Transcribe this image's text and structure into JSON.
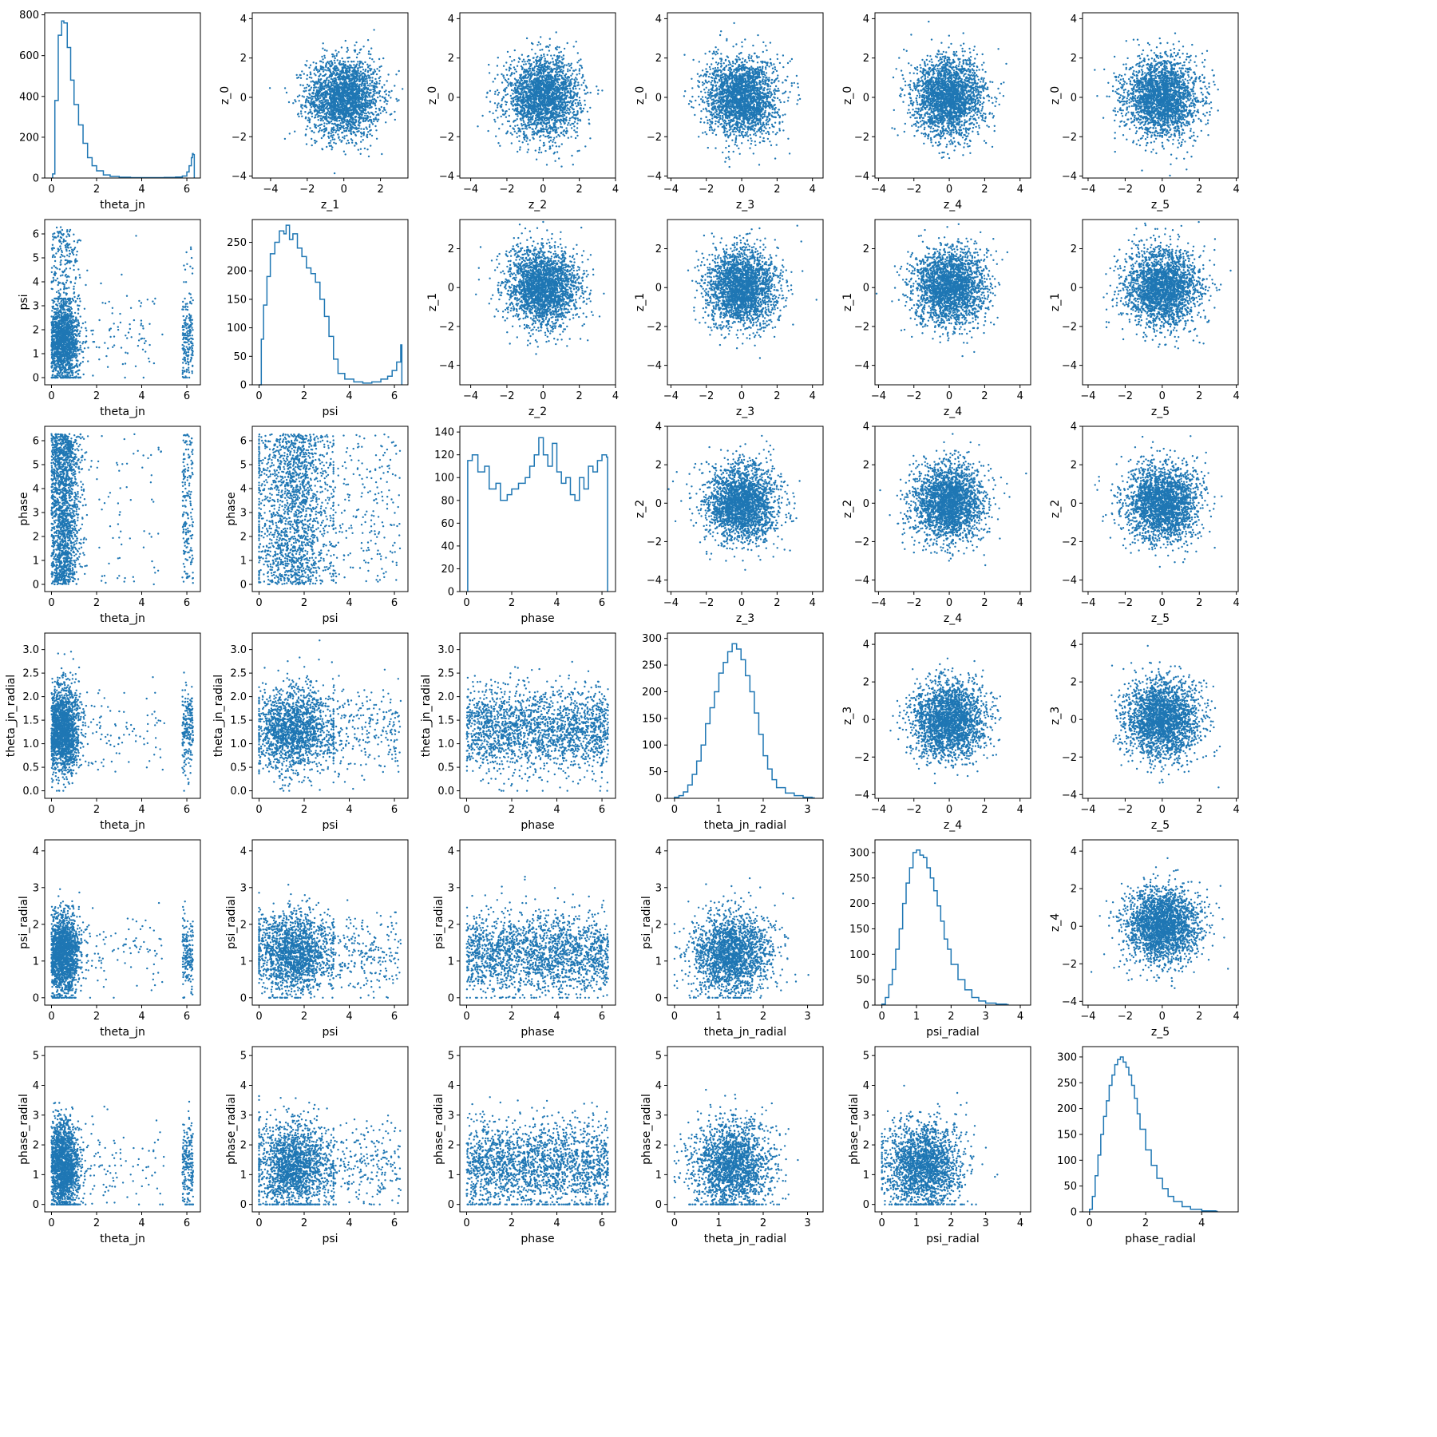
{
  "chart_data": {
    "type": "scatter",
    "layout": "corner-plot",
    "rows": 6,
    "cols": 6,
    "colors": {
      "series": "#1f77b4",
      "axes": "#000000",
      "background": "#ffffff"
    },
    "variables": {
      "z_0": {
        "ylabel": "z_0",
        "lim": [
          -4.1,
          4.3
        ],
        "ticks": [
          -4,
          -2,
          0,
          2,
          4
        ],
        "tick_labels": [
          "−4",
          "−2",
          "0",
          "2",
          "4"
        ]
      },
      "z_1_row": {
        "ylabel": "z_1",
        "lim": [
          -5.0,
          3.5
        ],
        "ticks": [
          -4,
          -2,
          0,
          2
        ],
        "tick_labels": [
          "−4",
          "−2",
          "0",
          "2"
        ]
      },
      "z_2_row": {
        "ylabel": "z_2",
        "lim": [
          -4.6,
          4.0
        ],
        "ticks": [
          -4,
          -2,
          0,
          2,
          4
        ],
        "tick_labels": [
          "−4",
          "−2",
          "0",
          "2",
          "4"
        ]
      },
      "z_3_row": {
        "ylabel": "z_3",
        "lim": [
          -4.2,
          4.6
        ],
        "ticks": [
          -4,
          -2,
          0,
          2,
          4
        ],
        "tick_labels": [
          "−4",
          "−2",
          "0",
          "2",
          "4"
        ]
      },
      "z_4_row": {
        "ylabel": "z_4",
        "lim": [
          -4.2,
          4.6
        ],
        "ticks": [
          -4,
          -2,
          0,
          2,
          4
        ],
        "tick_labels": [
          "−4",
          "−2",
          "0",
          "2",
          "4"
        ]
      },
      "z_1": {
        "xlabel": "z_1",
        "lim": [
          -5.0,
          3.5
        ],
        "ticks": [
          -4,
          -2,
          0,
          2
        ],
        "tick_labels": [
          "−4",
          "−2",
          "0",
          "2"
        ]
      },
      "z_2": {
        "xlabel": "z_2",
        "lim": [
          -4.6,
          4.0
        ],
        "ticks": [
          -4,
          -2,
          0,
          2,
          4
        ],
        "tick_labels": [
          "−4",
          "−2",
          "0",
          "2",
          "4"
        ]
      },
      "z_3": {
        "xlabel": "z_3",
        "lim": [
          -4.2,
          4.6
        ],
        "ticks": [
          -4,
          -2,
          0,
          2,
          4
        ],
        "tick_labels": [
          "−4",
          "−2",
          "0",
          "2",
          "4"
        ]
      },
      "z_4": {
        "xlabel": "z_4",
        "lim": [
          -4.2,
          4.6
        ],
        "ticks": [
          -4,
          -2,
          0,
          2,
          4
        ],
        "tick_labels": [
          "−4",
          "−2",
          "0",
          "2",
          "4"
        ]
      },
      "z_5": {
        "xlabel": "z_5",
        "lim": [
          -4.3,
          4.1
        ],
        "ticks": [
          -4,
          -2,
          0,
          2,
          4
        ],
        "tick_labels": [
          "−4",
          "−2",
          "0",
          "2",
          "4"
        ]
      },
      "theta_jn": {
        "label": "theta_jn",
        "lim": [
          -0.3,
          6.6
        ],
        "ticks": [
          0,
          2,
          4,
          6
        ],
        "tick_labels": [
          "0",
          "2",
          "4",
          "6"
        ]
      },
      "psi": {
        "label": "psi",
        "lim": [
          -0.3,
          6.6
        ],
        "ticks": [
          0,
          1,
          2,
          3,
          4,
          5,
          6
        ],
        "tick_labels": [
          "0",
          "1",
          "2",
          "3",
          "4",
          "5",
          "6"
        ],
        "xticks": [
          0,
          2,
          4,
          6
        ],
        "xtick_labels": [
          "0",
          "2",
          "4",
          "6"
        ]
      },
      "phase": {
        "label": "phase",
        "lim": [
          -0.3,
          6.6
        ],
        "ticks": [
          0,
          1,
          2,
          3,
          4,
          5,
          6
        ],
        "tick_labels": [
          "0",
          "1",
          "2",
          "3",
          "4",
          "5",
          "6"
        ],
        "xticks": [
          0,
          2,
          4,
          6
        ],
        "xtick_labels": [
          "0",
          "2",
          "4",
          "6"
        ]
      },
      "theta_jn_radial": {
        "label": "theta_jn_radial",
        "lim": [
          -0.16,
          3.35
        ],
        "ticks": [
          0.0,
          0.5,
          1.0,
          1.5,
          2.0,
          2.5,
          3.0
        ],
        "tick_labels": [
          "0.0",
          "0.5",
          "1.0",
          "1.5",
          "2.0",
          "2.5",
          "3.0"
        ],
        "xticks": [
          0,
          1,
          2,
          3
        ],
        "xtick_labels": [
          "0",
          "1",
          "2",
          "3"
        ]
      },
      "psi_radial": {
        "label": "psi_radial",
        "lim": [
          -0.2,
          4.3
        ],
        "ticks": [
          0,
          1,
          2,
          3,
          4
        ],
        "tick_labels": [
          "0",
          "1",
          "2",
          "3",
          "4"
        ]
      },
      "phase_radial": {
        "label": "phase_radial",
        "lim": [
          -0.25,
          5.3
        ],
        "ticks": [
          0,
          1,
          2,
          3,
          4,
          5
        ],
        "tick_labels": [
          "0",
          "1",
          "2",
          "3",
          "4",
          "5"
        ],
        "xticks": [
          0,
          2,
          4
        ],
        "xtick_labels": [
          "0",
          "2",
          "4"
        ]
      }
    },
    "histograms": [
      {
        "row": 0,
        "col": 0,
        "xlabel": "theta_jn",
        "xlim": [
          -0.3,
          6.6
        ],
        "ylim": [
          0,
          810
        ],
        "yticks": [
          0,
          200,
          400,
          600,
          800
        ],
        "ytick_labels": [
          "0",
          "200",
          "400",
          "600",
          "800"
        ],
        "xticks": [
          0,
          2,
          4,
          6
        ],
        "xtick_labels": [
          "0",
          "2",
          "4",
          "6"
        ],
        "x": [
          0.05,
          0.15,
          0.3,
          0.45,
          0.55,
          0.7,
          0.85,
          1.0,
          1.2,
          1.4,
          1.6,
          1.8,
          2.0,
          2.3,
          2.6,
          3.0,
          3.5,
          4.0,
          4.5,
          5.0,
          5.5,
          5.8,
          6.0,
          6.1,
          6.2,
          6.25,
          6.28
        ],
        "y": [
          20,
          380,
          700,
          770,
          760,
          640,
          480,
          360,
          260,
          170,
          100,
          60,
          35,
          15,
          8,
          4,
          2,
          2,
          2,
          3,
          5,
          10,
          30,
          60,
          100,
          120,
          115
        ]
      },
      {
        "row": 1,
        "col": 1,
        "xlabel": "psi",
        "xlim": [
          -0.3,
          6.6
        ],
        "ylim": [
          0,
          290
        ],
        "yticks": [
          0,
          50,
          100,
          150,
          200,
          250
        ],
        "ytick_labels": [
          "0",
          "50",
          "100",
          "150",
          "200",
          "250"
        ],
        "xticks": [
          0,
          2,
          4,
          6
        ],
        "xtick_labels": [
          "0",
          "2",
          "4",
          "6"
        ],
        "x": [
          0.0,
          0.1,
          0.2,
          0.35,
          0.5,
          0.7,
          0.9,
          1.1,
          1.2,
          1.35,
          1.5,
          1.7,
          1.9,
          2.1,
          2.3,
          2.5,
          2.7,
          2.9,
          3.1,
          3.3,
          3.5,
          3.8,
          4.2,
          4.6,
          5.0,
          5.4,
          5.7,
          5.9,
          6.1,
          6.28
        ],
        "y": [
          0,
          80,
          140,
          190,
          230,
          250,
          270,
          265,
          280,
          255,
          265,
          240,
          225,
          205,
          195,
          180,
          150,
          120,
          85,
          45,
          20,
          10,
          5,
          3,
          5,
          10,
          15,
          25,
          40,
          70
        ]
      },
      {
        "row": 2,
        "col": 2,
        "xlabel": "phase",
        "xlim": [
          -0.3,
          6.6
        ],
        "ylim": [
          0,
          145
        ],
        "yticks": [
          0,
          20,
          40,
          60,
          80,
          100,
          120,
          140
        ],
        "ytick_labels": [
          "0",
          "20",
          "40",
          "60",
          "80",
          "100",
          "120",
          "140"
        ],
        "xticks": [
          0,
          2,
          4,
          6
        ],
        "xtick_labels": [
          "0",
          "2",
          "4",
          "6"
        ],
        "x": [
          0.05,
          0.25,
          0.5,
          0.8,
          1.0,
          1.3,
          1.5,
          1.8,
          2.0,
          2.3,
          2.6,
          2.8,
          3.0,
          3.2,
          3.4,
          3.6,
          3.8,
          4.0,
          4.2,
          4.4,
          4.6,
          4.8,
          5.0,
          5.2,
          5.4,
          5.6,
          5.8,
          6.0,
          6.2
        ],
        "y": [
          115,
          120,
          105,
          110,
          90,
          95,
          80,
          85,
          90,
          95,
          100,
          110,
          120,
          135,
          120,
          110,
          130,
          105,
          95,
          100,
          85,
          80,
          100,
          90,
          110,
          105,
          115,
          120,
          118
        ]
      },
      {
        "row": 3,
        "col": 3,
        "xlabel": "theta_jn_radial",
        "xlim": [
          -0.16,
          3.35
        ],
        "ylim": [
          0,
          310
        ],
        "yticks": [
          0,
          50,
          100,
          150,
          200,
          250,
          300
        ],
        "ytick_labels": [
          "0",
          "50",
          "100",
          "150",
          "200",
          "250",
          "300"
        ],
        "xticks": [
          0,
          1,
          2,
          3
        ],
        "xtick_labels": [
          "0",
          "1",
          "2",
          "3"
        ],
        "x": [
          0.0,
          0.1,
          0.2,
          0.3,
          0.4,
          0.5,
          0.6,
          0.7,
          0.8,
          0.9,
          1.0,
          1.1,
          1.2,
          1.3,
          1.4,
          1.5,
          1.6,
          1.7,
          1.8,
          1.9,
          2.0,
          2.1,
          2.2,
          2.3,
          2.5,
          2.7,
          2.9,
          3.1
        ],
        "y": [
          2,
          5,
          12,
          25,
          45,
          70,
          100,
          140,
          170,
          200,
          235,
          255,
          275,
          290,
          280,
          260,
          230,
          200,
          160,
          120,
          80,
          55,
          35,
          20,
          10,
          5,
          2,
          1
        ]
      },
      {
        "row": 4,
        "col": 4,
        "xlabel": "psi_radial",
        "xlim": [
          -0.2,
          4.3
        ],
        "ylim": [
          0,
          325
        ],
        "yticks": [
          0,
          50,
          100,
          150,
          200,
          250,
          300
        ],
        "ytick_labels": [
          "0",
          "50",
          "100",
          "150",
          "200",
          "250",
          "300"
        ],
        "xticks": [
          0,
          1,
          2,
          3,
          4
        ],
        "xtick_labels": [
          "0",
          "1",
          "2",
          "3",
          "4"
        ],
        "x": [
          0.0,
          0.1,
          0.2,
          0.3,
          0.4,
          0.5,
          0.6,
          0.7,
          0.8,
          0.9,
          1.0,
          1.1,
          1.2,
          1.3,
          1.4,
          1.5,
          1.6,
          1.7,
          1.8,
          1.9,
          2.0,
          2.2,
          2.4,
          2.6,
          2.8,
          3.0,
          3.3,
          3.6
        ],
        "y": [
          2,
          15,
          40,
          70,
          110,
          150,
          200,
          240,
          270,
          300,
          305,
          295,
          290,
          270,
          250,
          225,
          195,
          165,
          130,
          110,
          80,
          50,
          30,
          15,
          8,
          4,
          2,
          1
        ]
      },
      {
        "row": 5,
        "col": 5,
        "xlabel": "phase_radial",
        "xlim": [
          -0.25,
          5.3
        ],
        "ylim": [
          0,
          320
        ],
        "yticks": [
          0,
          50,
          100,
          150,
          200,
          250,
          300
        ],
        "ytick_labels": [
          "0",
          "50",
          "100",
          "150",
          "200",
          "250",
          "300"
        ],
        "xticks": [
          0,
          2,
          4
        ],
        "xtick_labels": [
          "0",
          "2",
          "4"
        ],
        "x": [
          0.0,
          0.1,
          0.2,
          0.3,
          0.4,
          0.5,
          0.6,
          0.7,
          0.8,
          0.9,
          1.0,
          1.1,
          1.2,
          1.3,
          1.4,
          1.5,
          1.6,
          1.7,
          1.8,
          2.0,
          2.2,
          2.4,
          2.6,
          2.8,
          3.0,
          3.3,
          3.6,
          4.0,
          4.5
        ],
        "y": [
          5,
          30,
          70,
          110,
          150,
          185,
          215,
          245,
          265,
          285,
          295,
          300,
          290,
          280,
          265,
          245,
          220,
          190,
          160,
          120,
          90,
          65,
          45,
          30,
          20,
          10,
          5,
          2,
          1
        ]
      }
    ],
    "scatter_panels": [
      {
        "row": 0,
        "col": 1,
        "x": "z_1",
        "y": "z_0",
        "shape": "gaussian",
        "n": 2400
      },
      {
        "row": 0,
        "col": 2,
        "x": "z_2",
        "y": "z_0",
        "shape": "gaussian",
        "n": 2400
      },
      {
        "row": 0,
        "col": 3,
        "x": "z_3",
        "y": "z_0",
        "shape": "gaussian",
        "n": 2400
      },
      {
        "row": 0,
        "col": 4,
        "x": "z_4",
        "y": "z_0",
        "shape": "gaussian",
        "n": 2400
      },
      {
        "row": 0,
        "col": 5,
        "x": "z_5",
        "y": "z_0",
        "shape": "gaussian",
        "n": 2400
      },
      {
        "row": 1,
        "col": 2,
        "x": "z_2",
        "y": "z_1_row",
        "shape": "gaussian",
        "n": 2400
      },
      {
        "row": 1,
        "col": 3,
        "x": "z_3",
        "y": "z_1_row",
        "shape": "gaussian",
        "n": 2400
      },
      {
        "row": 1,
        "col": 4,
        "x": "z_4",
        "y": "z_1_row",
        "shape": "gaussian",
        "n": 2400
      },
      {
        "row": 1,
        "col": 5,
        "x": "z_5",
        "y": "z_1_row",
        "shape": "gaussian",
        "n": 2400
      },
      {
        "row": 2,
        "col": 3,
        "x": "z_3",
        "y": "z_2_row",
        "shape": "gaussian",
        "n": 2400
      },
      {
        "row": 2,
        "col": 4,
        "x": "z_4",
        "y": "z_2_row",
        "shape": "gaussian",
        "n": 2400
      },
      {
        "row": 2,
        "col": 5,
        "x": "z_5",
        "y": "z_2_row",
        "shape": "gaussian",
        "n": 2400
      },
      {
        "row": 3,
        "col": 4,
        "x": "z_4",
        "y": "z_3_row",
        "shape": "gaussian",
        "n": 2400
      },
      {
        "row": 3,
        "col": 5,
        "x": "z_5",
        "y": "z_3_row",
        "shape": "gaussian",
        "n": 2400
      },
      {
        "row": 4,
        "col": 5,
        "x": "z_5",
        "y": "z_4_row",
        "shape": "gaussian",
        "n": 2400
      },
      {
        "row": 1,
        "col": 0,
        "x": "theta_jn",
        "y": "psi",
        "n": 2000
      },
      {
        "row": 2,
        "col": 0,
        "x": "theta_jn",
        "y": "phase",
        "n": 2000
      },
      {
        "row": 2,
        "col": 1,
        "x": "psi",
        "y": "phase",
        "n": 2000
      },
      {
        "row": 3,
        "col": 0,
        "x": "theta_jn",
        "y": "theta_jn_radial",
        "n": 2000
      },
      {
        "row": 3,
        "col": 1,
        "x": "psi",
        "y": "theta_jn_radial",
        "n": 2000
      },
      {
        "row": 3,
        "col": 2,
        "x": "phase",
        "y": "theta_jn_radial",
        "n": 2000
      },
      {
        "row": 4,
        "col": 0,
        "x": "theta_jn",
        "y": "psi_radial",
        "n": 2000
      },
      {
        "row": 4,
        "col": 1,
        "x": "psi",
        "y": "psi_radial",
        "n": 2000
      },
      {
        "row": 4,
        "col": 2,
        "x": "phase",
        "y": "psi_radial",
        "n": 2000
      },
      {
        "row": 4,
        "col": 3,
        "x": "theta_jn_radial",
        "y": "psi_radial",
        "n": 2000
      },
      {
        "row": 5,
        "col": 0,
        "x": "theta_jn",
        "y": "phase_radial",
        "n": 2000
      },
      {
        "row": 5,
        "col": 1,
        "x": "psi",
        "y": "phase_radial",
        "n": 2000
      },
      {
        "row": 5,
        "col": 2,
        "x": "phase",
        "y": "phase_radial",
        "n": 2000
      },
      {
        "row": 5,
        "col": 3,
        "x": "theta_jn_radial",
        "y": "phase_radial",
        "n": 2000
      },
      {
        "row": 5,
        "col": 4,
        "x": "psi_radial",
        "y": "phase_radial",
        "n": 2000
      }
    ]
  }
}
